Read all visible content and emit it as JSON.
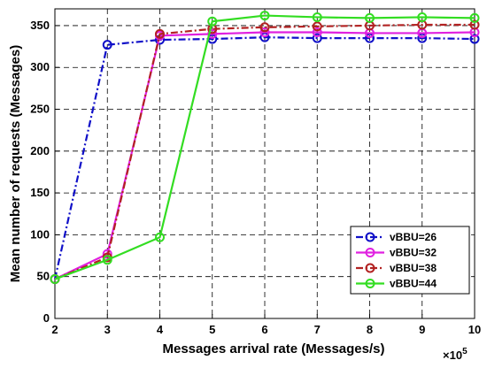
{
  "chart_data": {
    "type": "line",
    "xlabel": "Messages arrival rate (Messages/s)",
    "ylabel": "Mean number of requests (Messages)",
    "x_multiplier": "×10",
    "x_multiplier_exp": "5",
    "x": [
      2,
      3,
      4,
      5,
      6,
      7,
      8,
      9,
      10
    ],
    "xlim": [
      2,
      10
    ],
    "ylim": [
      0,
      370
    ],
    "xticks": [
      2,
      3,
      4,
      5,
      6,
      7,
      8,
      9,
      10
    ],
    "yticks": [
      0,
      50,
      100,
      150,
      200,
      250,
      300,
      350
    ],
    "grid": true,
    "legend_position": "lower-right",
    "series": [
      {
        "name": "vBBU=26",
        "color": "#1010c8",
        "dash": "dashdot",
        "values": [
          47,
          327,
          333,
          334,
          336,
          335,
          335,
          335,
          334
        ]
      },
      {
        "name": "vBBU=32",
        "color": "#e020e0",
        "dash": "solid",
        "values": [
          47,
          77,
          338,
          340,
          342,
          342,
          341,
          341,
          342
        ]
      },
      {
        "name": "vBBU=38",
        "color": "#b22222",
        "dash": "dashdot",
        "values": [
          47,
          73,
          340,
          346,
          348,
          349,
          350,
          351,
          351
        ]
      },
      {
        "name": "vBBU=44",
        "color": "#33dd22",
        "dash": "solid",
        "values": [
          47,
          70,
          97,
          355,
          362,
          360,
          359,
          360,
          359
        ]
      }
    ]
  }
}
